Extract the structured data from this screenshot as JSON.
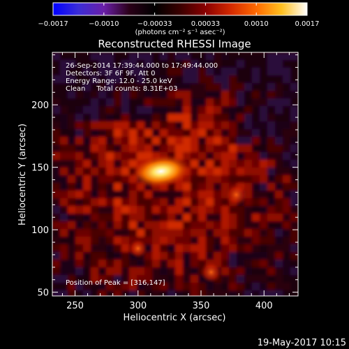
{
  "colorbar": {
    "colors": [
      "#0000ff",
      "#3b2dd6",
      "#6a1fa8",
      "#2a0018",
      "#000000",
      "#3a0000",
      "#8a0000",
      "#d42a00",
      "#ff6a00",
      "#ffc020",
      "#ffffff"
    ],
    "min": -0.0017,
    "max": 0.0017,
    "tick_labels": [
      "−0.0017",
      "−0.0010",
      "−0.00033",
      "0.00033",
      "0.0010",
      "0.0017"
    ],
    "unit_label": "(photons cm⁻² s⁻¹ asec⁻²)"
  },
  "chart_data": {
    "type": "heatmap",
    "title": "Reconstructed RHESSI Image",
    "xlabel": "Heliocentric X (arcsec)",
    "ylabel": "Heliocentric Y (arcsec)",
    "xlim": [
      232,
      427
    ],
    "ylim": [
      47,
      242
    ],
    "x_ticks": [
      250,
      300,
      350,
      400
    ],
    "y_ticks": [
      50,
      100,
      150,
      200
    ],
    "annotations": [
      "26-Sep-2014 17:39:44.000 to 17:49:44.000",
      "Detectors: 3F 6F 9F, Att 0",
      "Energy Range: 12.0 - 25.0 keV",
      "Clean     Total counts: 8.31E+03"
    ],
    "peak_label": "Position of Peak = [316,147]",
    "peak": [
      316,
      147
    ],
    "peak_flux": 0.0017,
    "sources": [
      {
        "x": 316,
        "y": 147,
        "flux": 0.0017
      },
      {
        "x": 378,
        "y": 128,
        "flux": 0.0008
      },
      {
        "x": 358,
        "y": 66,
        "flux": 0.0007
      },
      {
        "x": 300,
        "y": 85,
        "flux": 0.0005
      }
    ]
  },
  "footer": {
    "date": "19-May-2017 10:15"
  }
}
